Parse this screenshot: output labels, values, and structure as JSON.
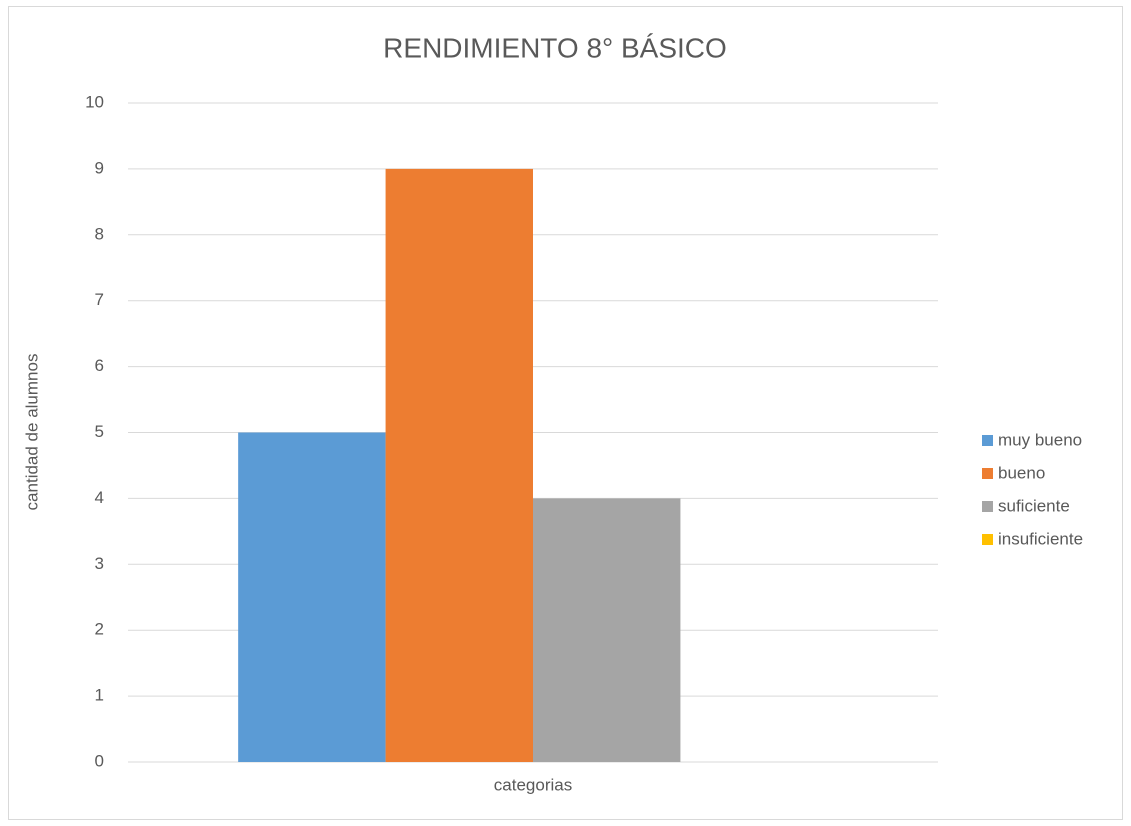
{
  "chart_data": {
    "type": "bar",
    "title": "RENDIMIENTO 8° BÁSICO",
    "ylabel": "cantidad de alumnos",
    "categories": [
      "categorias"
    ],
    "series": [
      {
        "name": "muy bueno",
        "color": "#5b9bd5",
        "values": [
          5
        ]
      },
      {
        "name": "bueno",
        "color": "#ed7d31",
        "values": [
          9
        ]
      },
      {
        "name": "suficiente",
        "color": "#a5a5a5",
        "values": [
          4
        ]
      },
      {
        "name": "insuficiente",
        "color": "#ffc000",
        "values": [
          0
        ]
      }
    ],
    "ylim": [
      0,
      10
    ],
    "yticks": [
      0,
      1,
      2,
      3,
      4,
      5,
      6,
      7,
      8,
      9,
      10
    ],
    "grid": true,
    "legend": "right"
  }
}
